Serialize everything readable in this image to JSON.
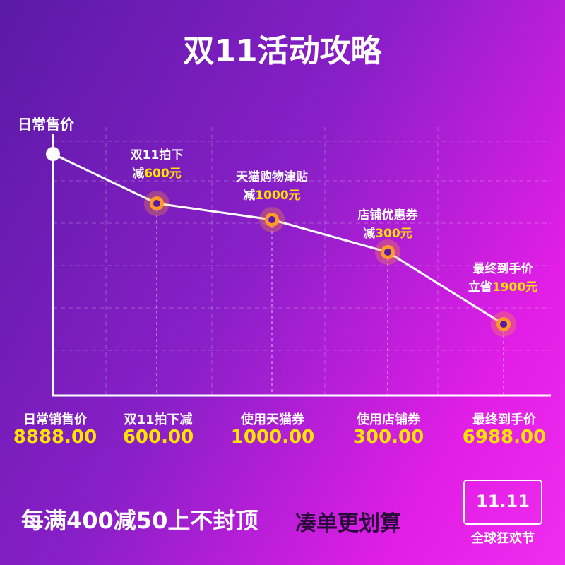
{
  "title": "双11活动攻略",
  "axis_label": "日常售价",
  "steps": [
    {
      "label": "双11拍下",
      "prefix": "减",
      "amount": "600元"
    },
    {
      "label": "天猫购物津贴",
      "prefix": "减",
      "amount": "1000元"
    },
    {
      "label": "店铺优惠券",
      "prefix": "减",
      "amount": "300元"
    },
    {
      "label": "最终到手价",
      "prefix": "立省",
      "amount": "1900元"
    }
  ],
  "items": [
    {
      "label": "日常销售价",
      "value": "8888.00"
    },
    {
      "label": "双11拍下减",
      "value": "600.00"
    },
    {
      "label": "使用天猫券",
      "value": "1000.00"
    },
    {
      "label": "使用店铺券",
      "value": "300.00"
    },
    {
      "label": "最终到手价",
      "value": "6988.00"
    }
  ],
  "slogan": {
    "main": "每满400减50上不封顶",
    "sub": "凑单更划算"
  },
  "badge": {
    "logo": "11.11",
    "text": "全球狂欢节"
  }
}
